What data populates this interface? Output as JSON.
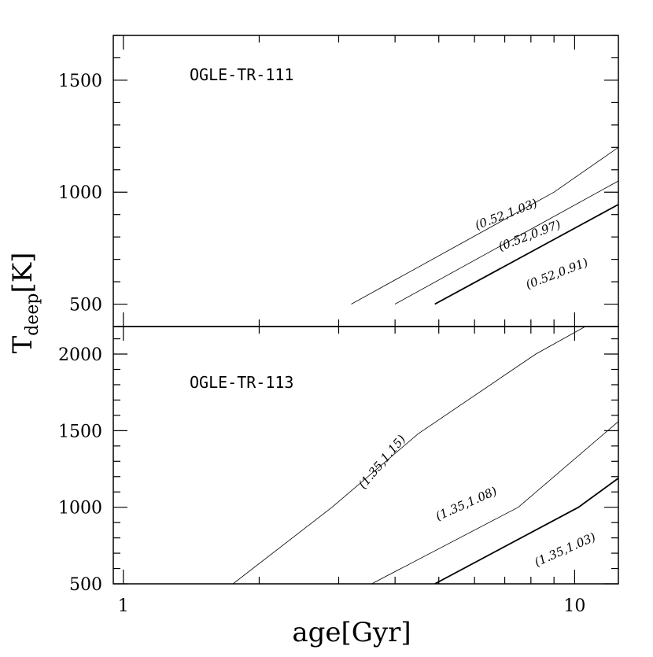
{
  "chart_data": [
    {
      "type": "line",
      "panel_label": "OGLE-TR-111",
      "xlabel": "age[Gyr]",
      "ylabel_main": "T",
      "ylabel_sub": "deep",
      "ylabel_unit": "[K]",
      "x_scale": "log",
      "xlim": [
        0.95,
        12.5
      ],
      "ylim": [
        400,
        1700
      ],
      "x_major_ticks": [
        1,
        10
      ],
      "y_tick_labels": [
        "500",
        "1000",
        "1500"
      ],
      "y_tick_values": [
        500,
        1000,
        1500
      ],
      "series": [
        {
          "label": "(0.52,1.03)",
          "x": [
            3.2,
            9.0,
            12.5
          ],
          "y": [
            500,
            1000,
            1200
          ],
          "thick": false,
          "label_at": [
            7.1,
            885
          ],
          "label_angle": -21
        },
        {
          "label": "(0.52,0.97)",
          "x": [
            4.0,
            12.5
          ],
          "y": [
            500,
            1050
          ],
          "thick": false,
          "label_at": [
            8.0,
            790
          ],
          "label_angle": -21
        },
        {
          "label": "(0.52,0.91)",
          "x": [
            4.9,
            12.5
          ],
          "y": [
            500,
            945
          ],
          "thick": true,
          "label_at": [
            9.2,
            620
          ],
          "label_angle": -21
        }
      ]
    },
    {
      "type": "line",
      "panel_label": "OGLE-TR-113",
      "x_scale": "log",
      "xlim": [
        0.95,
        12.5
      ],
      "ylim": [
        500,
        2180
      ],
      "x_major_ticks": [
        1,
        10
      ],
      "x_tick_labels": [
        "1",
        "10"
      ],
      "y_tick_labels": [
        "500",
        "1000",
        "1500",
        "2000"
      ],
      "y_tick_values": [
        500,
        1000,
        1500,
        2000
      ],
      "series": [
        {
          "label": "(1.35,1.15)",
          "x": [
            1.75,
            2.9,
            4.5,
            8.2,
            12.5
          ],
          "y": [
            500,
            1000,
            1480,
            2000,
            2300
          ],
          "thick": false,
          "label_at": [
            3.8,
            1280
          ],
          "label_angle": -50
        },
        {
          "label": "(1.35,1.08)",
          "x": [
            3.55,
            7.5,
            12.5
          ],
          "y": [
            500,
            1000,
            1560
          ],
          "thick": false,
          "label_at": [
            5.8,
            1000
          ],
          "label_angle": -24
        },
        {
          "label": "(1.35,1.03)",
          "x": [
            4.9,
            10.2,
            12.5
          ],
          "y": [
            500,
            1000,
            1190
          ],
          "thick": true,
          "label_at": [
            9.6,
            700
          ],
          "label_angle": -24
        }
      ]
    }
  ]
}
